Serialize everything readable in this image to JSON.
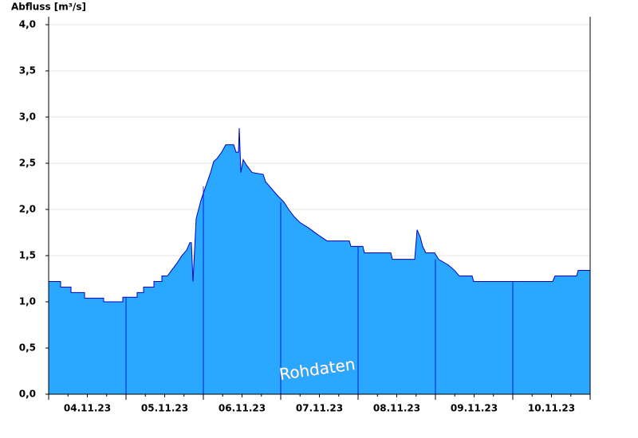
{
  "chart_data": {
    "type": "area",
    "y_label": "Abfluss [m³/s]",
    "annotation": "Rohdaten",
    "x": [
      0,
      0.155,
      0.155,
      0.289,
      0.289,
      0.464,
      0.464,
      0.711,
      0.711,
      0.959,
      0.959,
      1.144,
      1.144,
      1.227,
      1.227,
      1.361,
      1.361,
      1.464,
      1.464,
      1.536,
      1.588,
      1.66,
      1.722,
      1.784,
      1.825,
      1.845,
      1.866,
      1.907,
      1.969,
      2.031,
      2.093,
      2.134,
      2.175,
      2.237,
      2.289,
      2.392,
      2.423,
      2.454,
      2.464,
      2.485,
      2.515,
      2.557,
      2.629,
      2.773,
      2.804,
      2.887,
      2.959,
      3.041,
      3.103,
      3.175,
      3.247,
      3.361,
      3.474,
      3.598,
      3.887,
      3.907,
      4.062,
      4.082,
      4.423,
      4.443,
      4.732,
      4.763,
      4.804,
      4.835,
      4.876,
      4.99,
      5.041,
      5.165,
      5.247,
      5.309,
      5.474,
      5.495,
      6.515,
      6.546,
      6.825,
      6.845,
      7
    ],
    "series": [
      {
        "name": "Abfluss",
        "color": "#2aa7ff",
        "line_color": "#0000c8",
        "values": [
          1.22,
          1.22,
          1.16,
          1.16,
          1.1,
          1.1,
          1.04,
          1.04,
          1,
          1,
          1.05,
          1.05,
          1.1,
          1.1,
          1.16,
          1.16,
          1.22,
          1.22,
          1.28,
          1.28,
          1.34,
          1.42,
          1.5,
          1.56,
          1.64,
          1.64,
          1.22,
          1.9,
          2.1,
          2.25,
          2.4,
          2.52,
          2.55,
          2.62,
          2.7,
          2.7,
          2.62,
          2.62,
          2.88,
          2.4,
          2.54,
          2.48,
          2.4,
          2.38,
          2.3,
          2.22,
          2.15,
          2.08,
          2,
          1.92,
          1.86,
          1.8,
          1.73,
          1.66,
          1.66,
          1.6,
          1.6,
          1.53,
          1.53,
          1.46,
          1.46,
          1.78,
          1.7,
          1.6,
          1.53,
          1.53,
          1.46,
          1.4,
          1.34,
          1.28,
          1.28,
          1.22,
          1.22,
          1.28,
          1.28,
          1.34,
          1.34
        ]
      }
    ],
    "xlim": [
      0,
      7
    ],
    "xticks": [
      {
        "value": 0.5,
        "label": "04.11.23"
      },
      {
        "value": 1.5,
        "label": "05.11.23"
      },
      {
        "value": 2.5,
        "label": "06.11.23"
      },
      {
        "value": 3.5,
        "label": "07.11.23"
      },
      {
        "value": 4.5,
        "label": "08.11.23"
      },
      {
        "value": 5.5,
        "label": "09.11.23"
      },
      {
        "value": 6.5,
        "label": "10.11.23"
      }
    ],
    "ylim": [
      0,
      4
    ],
    "yticks": [
      {
        "value": 0,
        "label": "0,0"
      },
      {
        "value": 0.5,
        "label": "0,5"
      },
      {
        "value": 1,
        "label": "1,0"
      },
      {
        "value": 1.5,
        "label": "1,5"
      },
      {
        "value": 2,
        "label": "2,0"
      },
      {
        "value": 2.5,
        "label": "2,5"
      },
      {
        "value": 3,
        "label": "3,0"
      },
      {
        "value": 3.5,
        "label": "3,5"
      },
      {
        "value": 4,
        "label": "4,0"
      }
    ],
    "grid": true
  }
}
